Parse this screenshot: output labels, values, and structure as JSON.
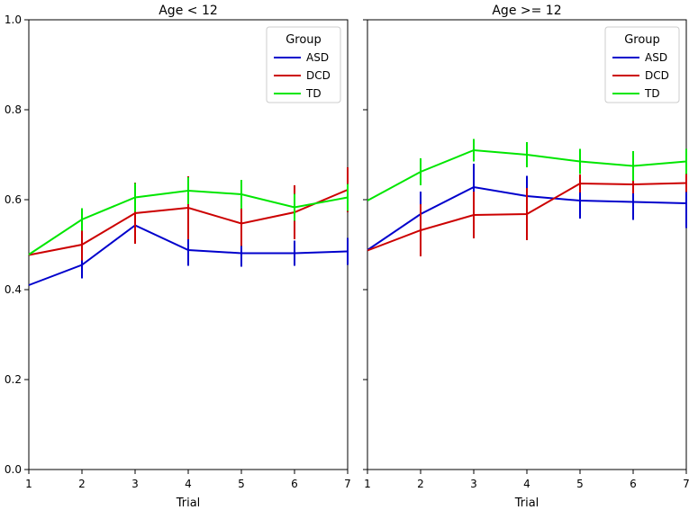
{
  "chart_data": [
    {
      "type": "line",
      "title": "Age < 12",
      "xlabel": "Trial",
      "ylabel": "",
      "xlim": [
        1,
        7
      ],
      "ylim": [
        0.0,
        1.0
      ],
      "x": [
        1,
        2,
        3,
        4,
        5,
        6,
        7
      ],
      "xticks": [
        "1",
        "2",
        "3",
        "4",
        "5",
        "6",
        "7"
      ],
      "yticks": [
        "0.0",
        "0.2",
        "0.4",
        "0.6",
        "0.8",
        "1.0"
      ],
      "legend": {
        "title": "Group",
        "position": "top-right"
      },
      "series": [
        {
          "name": "ASD",
          "color": "#0000cc",
          "values": [
            0.41,
            0.455,
            0.543,
            0.488,
            0.481,
            0.481,
            0.485
          ],
          "errors": [
            null,
            0.03,
            null,
            0.035,
            0.03,
            0.028,
            0.03
          ]
        },
        {
          "name": "DCD",
          "color": "#cc0000",
          "values": [
            0.477,
            0.5,
            0.57,
            0.582,
            0.547,
            0.572,
            0.622
          ],
          "errors": [
            null,
            0.035,
            0.068,
            0.07,
            0.05,
            0.06,
            0.05
          ]
        },
        {
          "name": "TD",
          "color": "#00e600",
          "values": [
            0.478,
            0.556,
            0.605,
            0.62,
            0.612,
            0.583,
            0.605
          ],
          "errors": [
            null,
            0.025,
            0.032,
            0.03,
            0.032,
            0.03,
            0.03
          ]
        }
      ]
    },
    {
      "type": "line",
      "title": "Age >= 12",
      "xlabel": "Trial",
      "ylabel": "",
      "xlim": [
        1,
        7
      ],
      "ylim": [
        0.0,
        1.0
      ],
      "x": [
        1,
        2,
        3,
        4,
        5,
        6,
        7
      ],
      "xticks": [
        "1",
        "2",
        "3",
        "4",
        "5",
        "6",
        "7"
      ],
      "yticks": [],
      "legend": {
        "title": "Group",
        "position": "top-right"
      },
      "series": [
        {
          "name": "ASD",
          "color": "#0000cc",
          "values": [
            0.488,
            0.568,
            0.628,
            0.608,
            0.598,
            0.595,
            0.592
          ],
          "errors": [
            null,
            0.05,
            0.052,
            0.045,
            0.04,
            0.04,
            0.055
          ]
        },
        {
          "name": "DCD",
          "color": "#cc0000",
          "values": [
            0.487,
            0.532,
            0.566,
            0.568,
            0.636,
            0.634,
            0.637
          ],
          "errors": [
            null,
            0.058,
            0.052,
            0.058,
            0.02,
            0.02,
            0.02
          ]
        },
        {
          "name": "TD",
          "color": "#00e600",
          "values": [
            0.598,
            0.662,
            0.71,
            0.7,
            0.685,
            0.675,
            0.685
          ],
          "errors": [
            null,
            0.03,
            0.025,
            0.028,
            0.028,
            0.033,
            0.028
          ]
        }
      ]
    }
  ]
}
